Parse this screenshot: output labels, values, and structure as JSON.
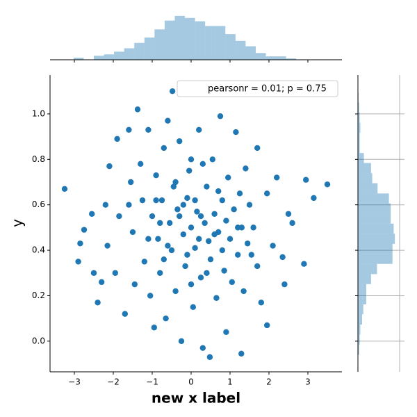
{
  "chart_data": [
    {
      "type": "scatter",
      "color": "#1f77b4",
      "xlabel": "new x label",
      "ylabel": "y",
      "annotation": "pearsonr = 0.01; p = 0.75",
      "xlim": [
        -3.625,
        3.875
      ],
      "ylim": [
        -0.135,
        1.171
      ],
      "xticks": [
        {
          "value": -3,
          "label": "−3"
        },
        {
          "value": -2,
          "label": "−2"
        },
        {
          "value": -1,
          "label": "−1"
        },
        0,
        1,
        2,
        3
      ],
      "yticks": [
        {
          "value": 0,
          "label": "0.0"
        },
        {
          "value": 0.2,
          "label": "0.2"
        },
        {
          "value": 0.4,
          "label": "0.4"
        },
        {
          "value": 0.6,
          "label": "0.6"
        },
        {
          "value": 0.8,
          "label": "0.8"
        },
        {
          "value": 1,
          "label": "1.0"
        }
      ],
      "x": [
        -3.25,
        3.5,
        -2.9,
        -2.85,
        -2.75,
        3.15,
        2.95,
        2.9,
        -2.55,
        -2.5,
        -2.4,
        -2.3,
        2.5,
        2.6,
        2.4,
        2.35,
        -2.2,
        -2.15,
        -2.1,
        2.2,
        2.1,
        -1.95,
        -1.9,
        -1.85,
        1.95,
        1.95,
        1.8,
        -1.7,
        -1.6,
        -1.55,
        -1.5,
        -1.45,
        1.7,
        1.6,
        1.55,
        -1.375,
        -1.3,
        -1.25,
        -1.2,
        -1.1,
        -1.05,
        -1.0,
        -0.95,
        -0.9,
        -0.85,
        -0.8,
        -0.75,
        -0.7,
        -0.65,
        -0.6,
        -0.55,
        -0.5,
        -0.48,
        -0.45,
        -0.4,
        -0.35,
        -0.3,
        -0.25,
        -0.2,
        -0.15,
        -0.1,
        -0.05,
        0.0,
        0.05,
        0.1,
        0.15,
        0.2,
        0.25,
        0.3,
        0.35,
        0.4,
        0.45,
        0.48,
        0.5,
        0.55,
        0.6,
        0.65,
        0.7,
        0.75,
        0.8,
        0.85,
        0.9,
        0.95,
        1.0,
        1.05,
        1.1,
        1.15,
        1.2,
        1.25,
        1.29,
        1.3,
        1.35,
        1.4,
        1.45,
        1.5,
        -0.3,
        0.2,
        -0.6,
        0.6,
        0.1,
        -0.1,
        0.4,
        -0.4,
        0.3,
        -0.8,
        0.9,
        -1.1,
        1.2,
        0.0,
        0.0,
        -0.2,
        0.25,
        -0.7,
        0.7,
        -1.6,
        1.7,
        -0.9,
        0.8
      ],
      "y": [
        0.67,
        0.69,
        0.35,
        0.43,
        0.49,
        0.63,
        0.71,
        0.34,
        0.56,
        0.3,
        0.17,
        0.26,
        0.56,
        0.52,
        0.25,
        0.37,
        0.6,
        0.42,
        0.77,
        0.72,
        0.42,
        0.3,
        0.89,
        0.55,
        0.65,
        0.07,
        0.17,
        0.12,
        0.93,
        0.7,
        0.48,
        0.25,
        0.85,
        0.5,
        0.38,
        1.02,
        0.78,
        0.62,
        0.35,
        0.93,
        0.2,
        0.55,
        0.06,
        0.73,
        0.45,
        0.3,
        0.62,
        0.85,
        0.1,
        0.97,
        0.52,
        0.4,
        1.1,
        0.68,
        0.22,
        0.58,
        0.88,
        0.0,
        0.47,
        0.33,
        0.63,
        0.75,
        0.5,
        0.15,
        0.41,
        0.57,
        0.93,
        0.28,
        -0.03,
        0.52,
        0.68,
        0.44,
        -0.07,
        0.36,
        0.8,
        0.56,
        0.19,
        0.48,
        0.99,
        0.62,
        0.31,
        0.04,
        0.72,
        0.45,
        0.26,
        0.58,
        0.92,
        0.38,
        0.65,
        -0.055,
        0.5,
        0.22,
        0.76,
        0.43,
        0.6,
        0.55,
        0.45,
        0.42,
        0.47,
        0.62,
        0.38,
        0.3,
        0.7,
        0.78,
        0.52,
        0.53,
        0.45,
        0.5,
        0.25,
        0.8,
        0.6,
        0.55,
        0.36,
        0.66,
        0.6,
        0.33,
        0.62,
        0.4
      ]
    },
    {
      "type": "histogram",
      "orientation": "vertical",
      "color": "#1f77b4",
      "ylim": [
        0,
        70
      ],
      "bins": [
        -3.02,
        -2.76,
        -2.5,
        -2.24,
        -1.98,
        -1.72,
        -1.46,
        -1.2,
        -0.94,
        -0.68,
        -0.42,
        -0.16,
        0.1,
        0.36,
        0.62,
        0.88,
        1.14,
        1.4,
        1.66,
        1.92,
        2.18,
        2.44,
        2.7
      ],
      "values": [
        3,
        0,
        6,
        8,
        12,
        17,
        25,
        33,
        45,
        58,
        65,
        62,
        57,
        50,
        50,
        38,
        28,
        20,
        10,
        5,
        5,
        2
      ]
    },
    {
      "type": "histogram",
      "orientation": "horizontal",
      "color": "#1f77b4",
      "xlim": [
        0,
        70
      ],
      "bins": [
        -0.06,
        -0.016,
        0.029,
        0.073,
        0.118,
        0.162,
        0.206,
        0.251,
        0.295,
        0.34,
        0.384,
        0.428,
        0.473,
        0.517,
        0.562,
        0.606,
        0.65,
        0.695,
        0.739,
        0.784,
        0.828,
        0.872,
        0.917,
        0.961,
        1.006,
        1.05,
        1.094
      ],
      "values": [
        2,
        3,
        4,
        7,
        9,
        14,
        14,
        22,
        32,
        58,
        58,
        62,
        60,
        55,
        55,
        52,
        33,
        24,
        22,
        10,
        3,
        3,
        4,
        3,
        2,
        1
      ]
    }
  ]
}
